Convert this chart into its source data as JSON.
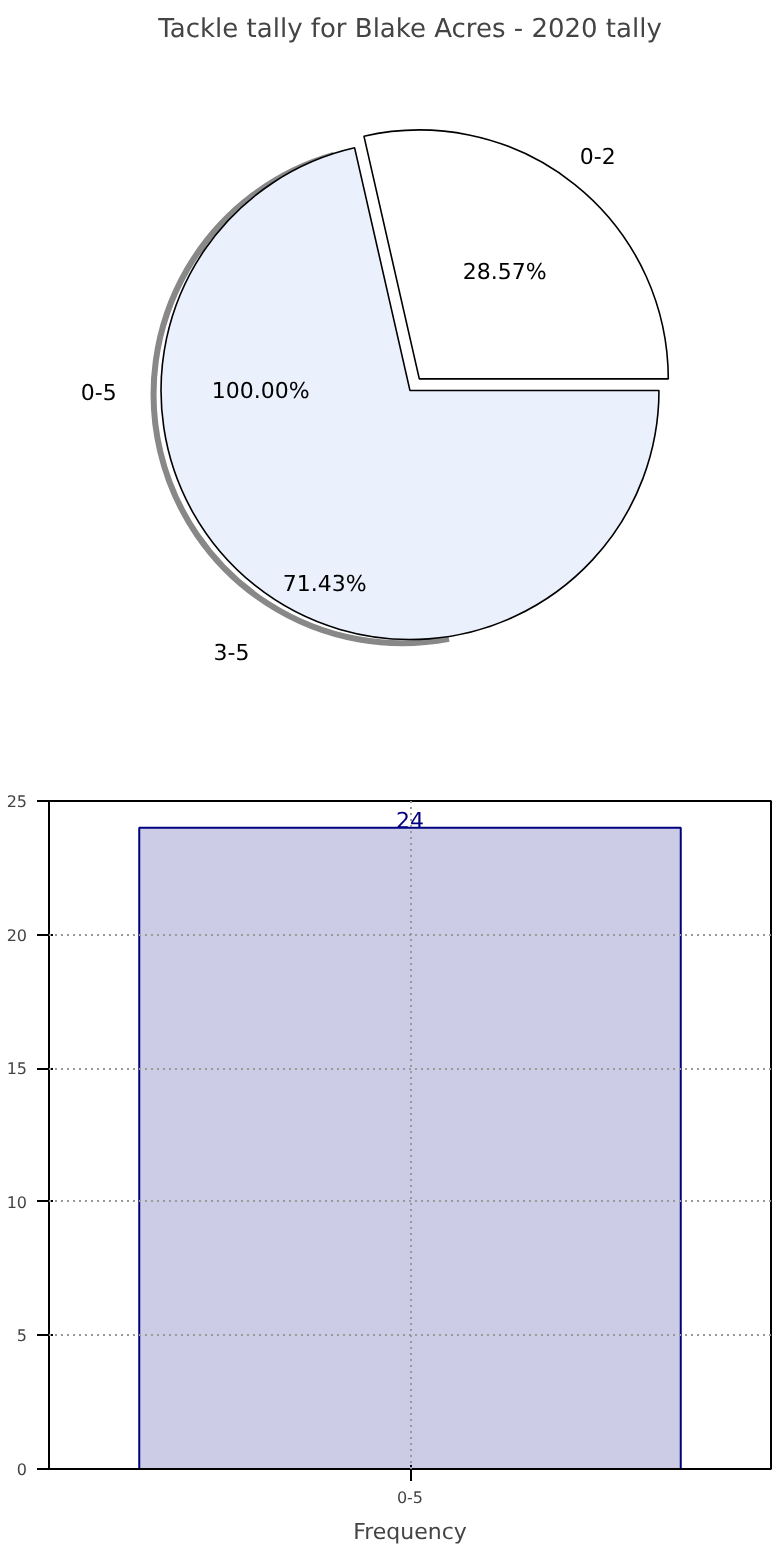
{
  "chart_data": [
    {
      "type": "pie",
      "title": "Tackle tally for Blake Acres - 2020 tally",
      "categories": [
        "0-2",
        "3-5"
      ],
      "values": [
        28.57,
        71.43
      ],
      "colors": [
        "#ffffff",
        "#ebf0fd"
      ],
      "value_labels": [
        "28.57%",
        "71.43%"
      ],
      "annotations": [
        "0-5",
        "100.00%"
      ]
    },
    {
      "type": "bar",
      "categories": [
        "0-5"
      ],
      "values": [
        24
      ],
      "color": "#cccce6",
      "ylim": [
        0,
        25
      ],
      "yticks": [
        0,
        5,
        10,
        15,
        20,
        25
      ],
      "grid": true,
      "data_labels": true,
      "xlabel": "Frequency"
    }
  ]
}
